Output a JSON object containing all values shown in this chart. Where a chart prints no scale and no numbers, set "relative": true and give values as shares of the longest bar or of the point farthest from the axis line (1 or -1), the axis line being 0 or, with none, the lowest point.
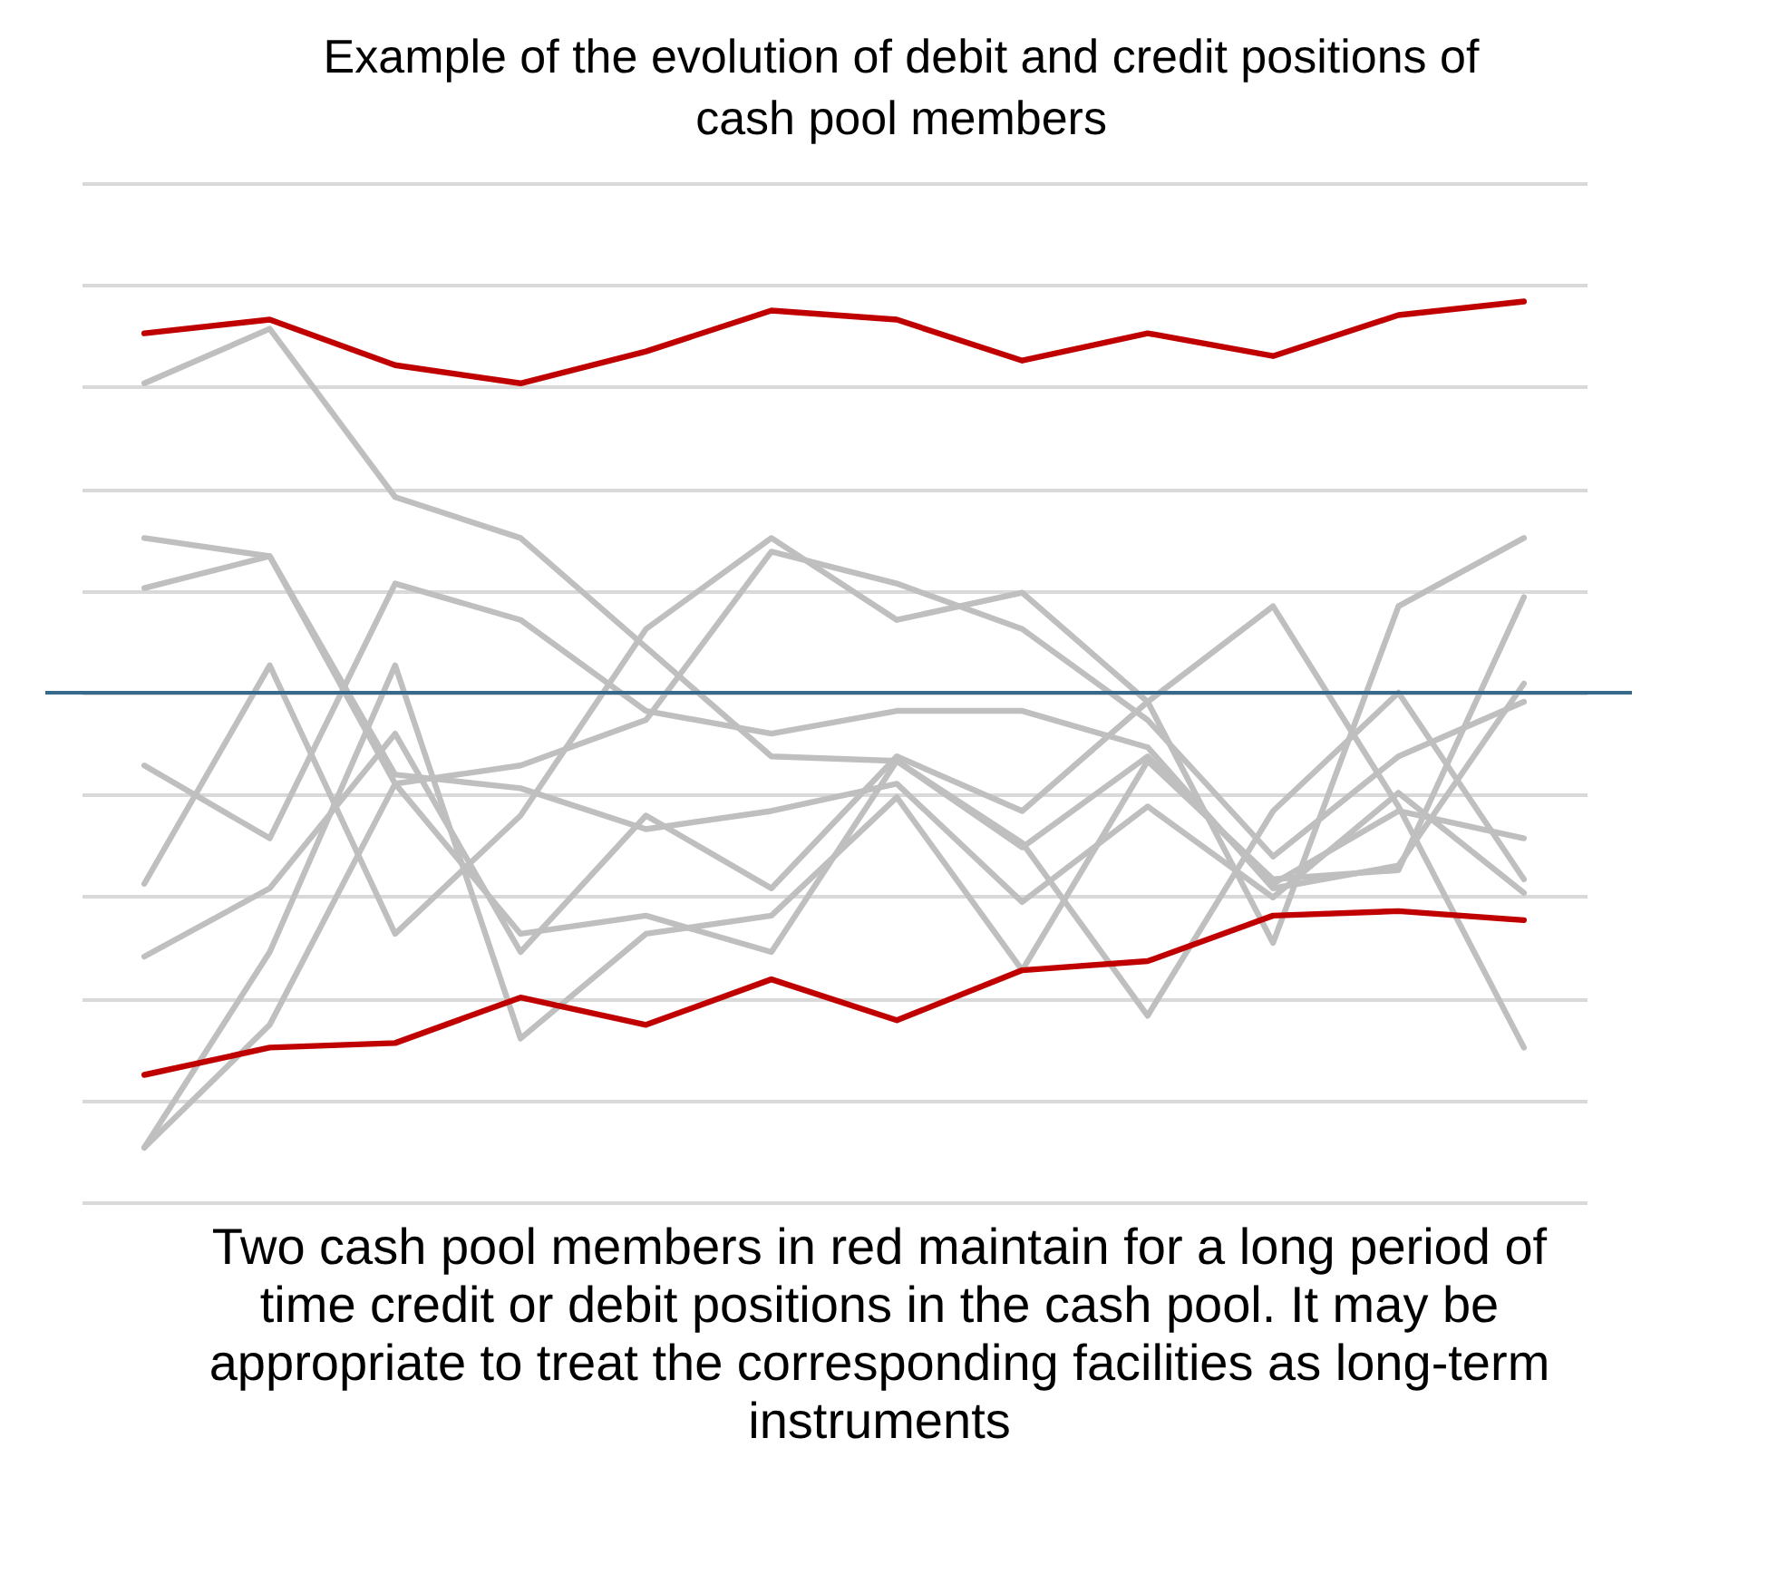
{
  "chart_data": {
    "type": "line",
    "title": "Example of the evolution of debit and credit positions of cash pool members",
    "categories": [
      null,
      null,
      null,
      null,
      null,
      null,
      null,
      null,
      null,
      null,
      null,
      null
    ],
    "relative": true,
    "grid": "y",
    "series": [
      {
        "color": "#bfbfbf",
        "values": [
          0.68,
          0.8,
          0.43,
          0.34,
          0.1,
          -0.14,
          -0.15,
          -0.34,
          -0.14,
          -0.42,
          -0.26,
          -0.32
        ]
      },
      {
        "color": "#bfbfbf",
        "values": [
          0.34,
          0.3,
          -0.18,
          -0.21,
          -0.3,
          -0.26,
          -0.2,
          -0.46,
          -0.25,
          -0.45,
          -0.22,
          -0.44
        ]
      },
      {
        "color": "#bfbfbf",
        "values": [
          0.23,
          0.3,
          -0.2,
          -0.16,
          -0.06,
          0.31,
          0.24,
          0.14,
          -0.06,
          -0.36,
          -0.14,
          -0.02
        ]
      },
      {
        "color": "#bfbfbf",
        "values": [
          -0.16,
          -0.32,
          0.24,
          0.16,
          -0.04,
          -0.09,
          -0.04,
          -0.04,
          -0.12,
          -0.43,
          -0.38,
          0.02
        ]
      },
      {
        "color": "#bfbfbf",
        "values": [
          -0.42,
          0.06,
          -0.53,
          -0.27,
          0.14,
          0.34,
          0.16,
          0.22,
          -0.02,
          0.19,
          -0.25,
          -0.78
        ]
      },
      {
        "color": "#bfbfbf",
        "values": [
          -0.58,
          -0.43,
          -0.09,
          -0.57,
          -0.27,
          -0.43,
          -0.14,
          -0.26,
          -0.02,
          -0.55,
          0.19,
          0.34
        ]
      },
      {
        "color": "#bfbfbf",
        "values": [
          -1.0,
          -0.57,
          0.06,
          -0.76,
          -0.53,
          -0.49,
          -0.23,
          -0.61,
          -0.15,
          -0.41,
          -0.39,
          0.21
        ]
      },
      {
        "color": "#bfbfbf",
        "values": [
          -1.0,
          -0.73,
          -0.2,
          -0.53,
          -0.49,
          -0.57,
          -0.15,
          -0.33,
          -0.71,
          -0.26,
          0.0,
          -0.41
        ]
      },
      {
        "color": "#c00000",
        "values": [
          0.79,
          0.82,
          0.72,
          0.68,
          0.75,
          0.84,
          0.82,
          0.73,
          0.79,
          0.74,
          0.83,
          0.86
        ]
      },
      {
        "color": "#c00000",
        "values": [
          -0.84,
          -0.78,
          -0.77,
          -0.67,
          -0.73,
          -0.63,
          -0.72,
          -0.61,
          -0.59,
          -0.49,
          -0.48,
          -0.5
        ]
      }
    ],
    "ref_lines": [
      {
        "axis": "y",
        "value": 0,
        "color": "#376a8a"
      }
    ],
    "annotations": [
      "Two cash pool members in red maintain for a long period of time credit or debit positions in the cash pool. It may be appropriate to treat the corresponding facilities as long-term instruments"
    ]
  }
}
